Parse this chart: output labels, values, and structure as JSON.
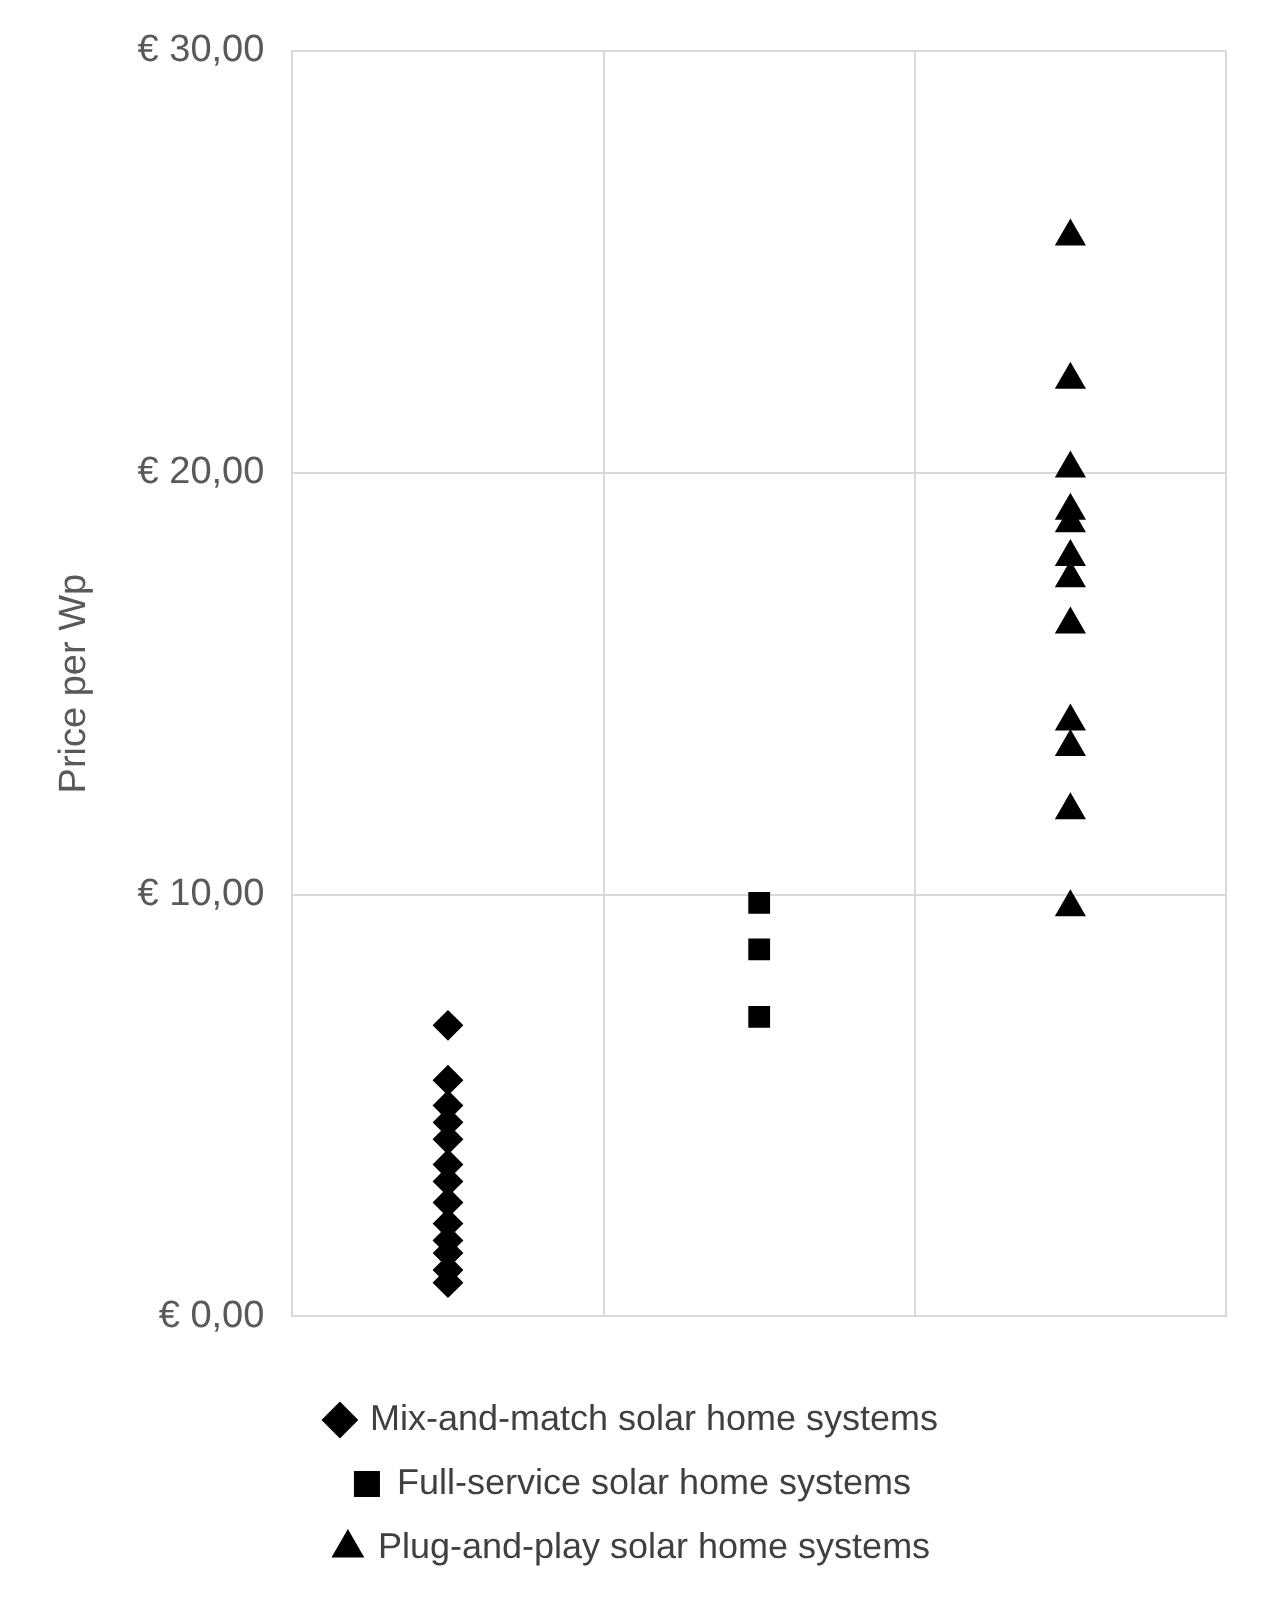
{
  "chart_data": {
    "type": "scatter",
    "ylabel": "Price per Wp",
    "categories": [
      null,
      null,
      null
    ],
    "ylim": [
      0,
      30
    ],
    "yticks": [
      {
        "value": 0,
        "label": "€ 0,00"
      },
      {
        "value": 10,
        "label": "€ 10,00"
      },
      {
        "value": 20,
        "label": "€ 20,00"
      },
      {
        "value": 30,
        "label": "€ 30,00"
      }
    ],
    "grid": true,
    "legend": "bottom",
    "series": [
      {
        "name": "Mix-and-match solar home systems",
        "color": "#000000",
        "marker": "diamond",
        "values": [
          6.9,
          null,
          null
        ]
      },
      {
        "color": "#000000",
        "marker": "diamond",
        "values": [
          5.6,
          null,
          null
        ]
      },
      {
        "color": "#000000",
        "marker": "diamond",
        "values": [
          5.0,
          null,
          null
        ]
      },
      {
        "color": "#000000",
        "marker": "diamond",
        "values": [
          4.6,
          null,
          null
        ]
      },
      {
        "color": "#000000",
        "marker": "diamond",
        "values": [
          4.2,
          null,
          null
        ]
      },
      {
        "color": "#000000",
        "marker": "diamond",
        "values": [
          3.6,
          null,
          null
        ]
      },
      {
        "color": "#000000",
        "marker": "diamond",
        "values": [
          3.2,
          null,
          null
        ]
      },
      {
        "color": "#000000",
        "marker": "diamond",
        "values": [
          2.7,
          null,
          null
        ]
      },
      {
        "color": "#000000",
        "marker": "diamond",
        "values": [
          2.2,
          null,
          null
        ]
      },
      {
        "color": "#000000",
        "marker": "diamond",
        "values": [
          1.8,
          null,
          null
        ]
      },
      {
        "color": "#000000",
        "marker": "diamond",
        "values": [
          1.5,
          null,
          null
        ]
      },
      {
        "color": "#000000",
        "marker": "diamond",
        "values": [
          1.1,
          null,
          null
        ]
      },
      {
        "color": "#000000",
        "marker": "diamond",
        "values": [
          0.8,
          null,
          null
        ]
      },
      {
        "name": "Full-service solar home systems",
        "color": "#000000",
        "marker": "square",
        "values": [
          null,
          9.8,
          null
        ]
      },
      {
        "color": "#000000",
        "marker": "square",
        "values": [
          null,
          8.7,
          null
        ]
      },
      {
        "color": "#000000",
        "marker": "square",
        "values": [
          null,
          7.1,
          null
        ]
      },
      {
        "name": "Plug-and-play solar home systems",
        "color": "#000000",
        "marker": "triangle",
        "values": [
          null,
          null,
          25.6
        ]
      },
      {
        "color": "#000000",
        "marker": "triangle",
        "values": [
          null,
          null,
          22.2
        ]
      },
      {
        "color": "#000000",
        "marker": "triangle",
        "values": [
          null,
          null,
          20.1
        ]
      },
      {
        "color": "#000000",
        "marker": "triangle",
        "values": [
          null,
          null,
          19.1
        ]
      },
      {
        "color": "#000000",
        "marker": "triangle",
        "values": [
          null,
          null,
          18.8
        ]
      },
      {
        "color": "#000000",
        "marker": "triangle",
        "values": [
          null,
          null,
          18.0
        ]
      },
      {
        "color": "#000000",
        "marker": "triangle",
        "values": [
          null,
          null,
          17.5
        ]
      },
      {
        "color": "#000000",
        "marker": "triangle",
        "values": [
          null,
          null,
          16.4
        ]
      },
      {
        "color": "#000000",
        "marker": "triangle",
        "values": [
          null,
          null,
          14.1
        ]
      },
      {
        "color": "#000000",
        "marker": "triangle",
        "values": [
          null,
          null,
          13.5
        ]
      },
      {
        "color": "#000000",
        "marker": "triangle",
        "values": [
          null,
          null,
          12.0
        ]
      },
      {
        "color": "#000000",
        "marker": "triangle",
        "values": [
          null,
          null,
          9.7
        ]
      }
    ]
  }
}
